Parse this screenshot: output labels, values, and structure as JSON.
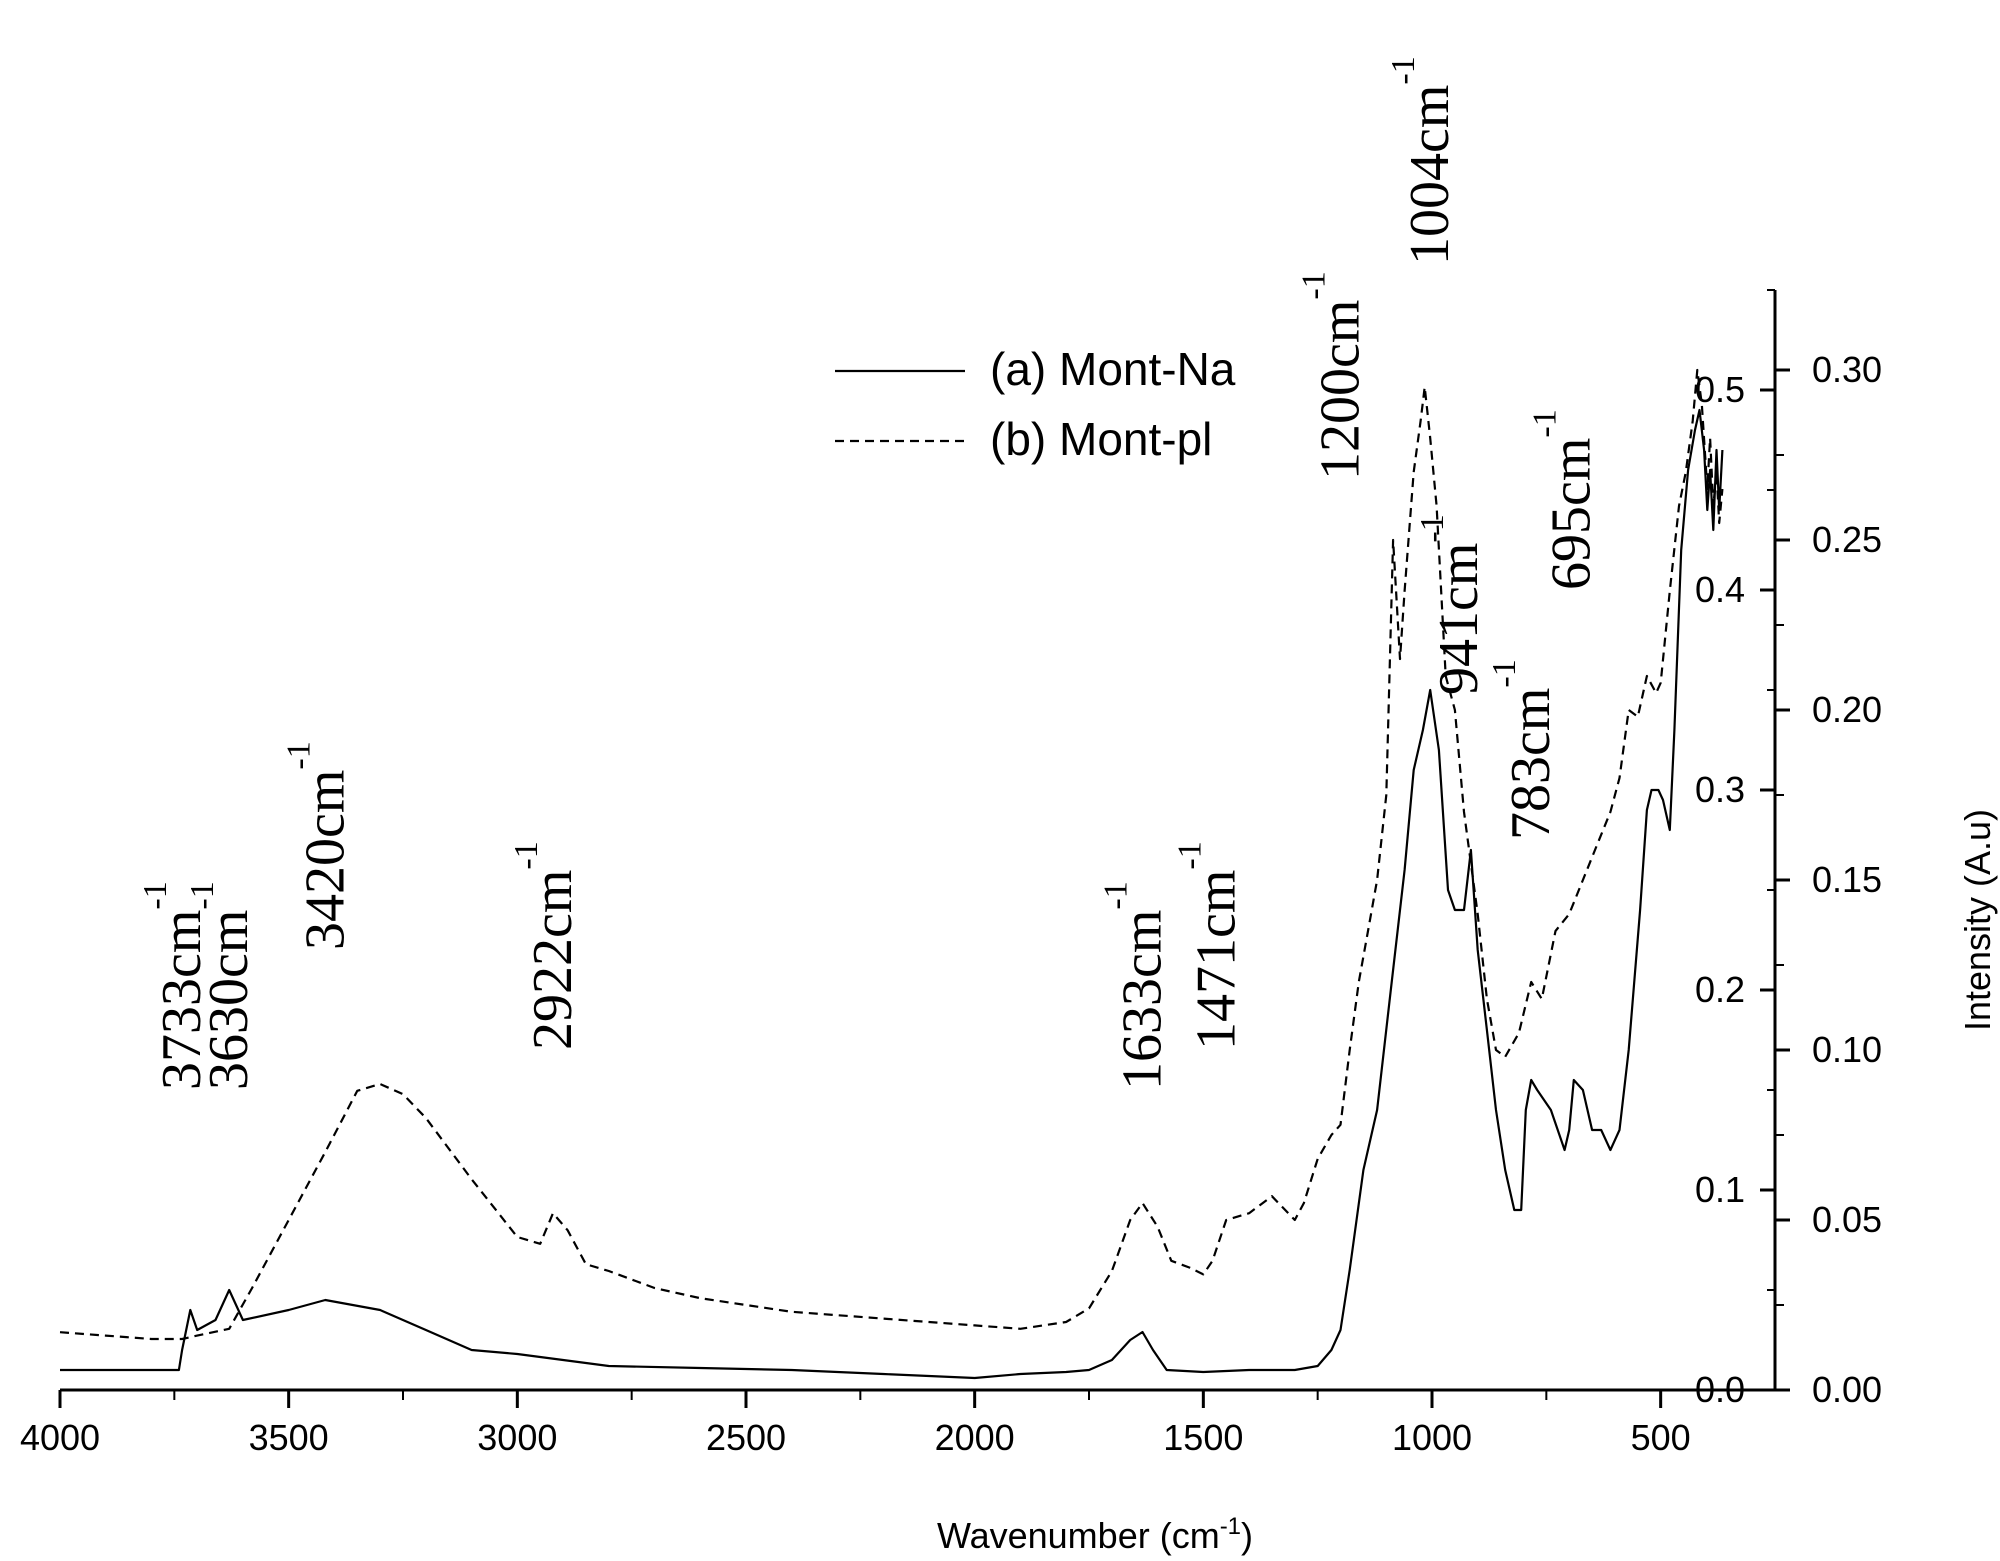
{
  "chart_data": {
    "type": "line",
    "xlabel": "Wavenumber (cm",
    "xlabel_sup": "-1",
    "xlabel_end": ")",
    "ylabel_right": "Intensity (A.u)",
    "xlim": [
      4000,
      250
    ],
    "x_reversed": true,
    "x_ticks": [
      "4000",
      "3500",
      "3000",
      "2500",
      "2000",
      "1500",
      "1000",
      "500"
    ],
    "y_left_range": [
      0,
      0.55
    ],
    "y_left_ticks": [
      "0.0",
      "0.1",
      "0.2",
      "0.3",
      "0.4",
      "0.5"
    ],
    "y_right_range": [
      0,
      0.33
    ],
    "y_right_ticks": [
      "0.00",
      "0.05",
      "0.10",
      "0.15",
      "0.20",
      "0.25",
      "0.30"
    ],
    "legend": {
      "position": "top-center",
      "entries": [
        "(a) Mont-Na",
        "(b) Mont-pl"
      ]
    },
    "series": [
      {
        "name": "(a) Mont-Na",
        "style": "solid",
        "axis": "left",
        "points": [
          [
            4000,
            0.01
          ],
          [
            3900,
            0.01
          ],
          [
            3800,
            0.01
          ],
          [
            3740,
            0.01
          ],
          [
            3733,
            0.02
          ],
          [
            3715,
            0.04
          ],
          [
            3700,
            0.03
          ],
          [
            3660,
            0.035
          ],
          [
            3630,
            0.05
          ],
          [
            3600,
            0.035
          ],
          [
            3500,
            0.04
          ],
          [
            3420,
            0.045
          ],
          [
            3300,
            0.04
          ],
          [
            3200,
            0.03
          ],
          [
            3100,
            0.02
          ],
          [
            3000,
            0.018
          ],
          [
            2900,
            0.015
          ],
          [
            2800,
            0.012
          ],
          [
            2600,
            0.011
          ],
          [
            2400,
            0.01
          ],
          [
            2200,
            0.008
          ],
          [
            2000,
            0.006
          ],
          [
            1900,
            0.008
          ],
          [
            1800,
            0.009
          ],
          [
            1750,
            0.01
          ],
          [
            1700,
            0.015
          ],
          [
            1660,
            0.025
          ],
          [
            1633,
            0.029
          ],
          [
            1610,
            0.02
          ],
          [
            1580,
            0.01
          ],
          [
            1500,
            0.009
          ],
          [
            1400,
            0.01
          ],
          [
            1300,
            0.01
          ],
          [
            1250,
            0.012
          ],
          [
            1220,
            0.02
          ],
          [
            1200,
            0.03
          ],
          [
            1180,
            0.06
          ],
          [
            1150,
            0.11
          ],
          [
            1120,
            0.14
          ],
          [
            1090,
            0.2
          ],
          [
            1060,
            0.26
          ],
          [
            1040,
            0.31
          ],
          [
            1020,
            0.33
          ],
          [
            1004,
            0.35
          ],
          [
            985,
            0.32
          ],
          [
            965,
            0.25
          ],
          [
            950,
            0.24
          ],
          [
            930,
            0.24
          ],
          [
            915,
            0.27
          ],
          [
            900,
            0.22
          ],
          [
            880,
            0.18
          ],
          [
            860,
            0.14
          ],
          [
            840,
            0.11
          ],
          [
            820,
            0.09
          ],
          [
            805,
            0.09
          ],
          [
            795,
            0.14
          ],
          [
            783,
            0.155
          ],
          [
            770,
            0.15
          ],
          [
            740,
            0.14
          ],
          [
            710,
            0.12
          ],
          [
            700,
            0.13
          ],
          [
            690,
            0.155
          ],
          [
            670,
            0.15
          ],
          [
            650,
            0.13
          ],
          [
            630,
            0.13
          ],
          [
            610,
            0.12
          ],
          [
            590,
            0.13
          ],
          [
            570,
            0.17
          ],
          [
            545,
            0.24
          ],
          [
            530,
            0.29
          ],
          [
            520,
            0.3
          ],
          [
            505,
            0.3
          ],
          [
            495,
            0.295
          ],
          [
            480,
            0.28
          ],
          [
            470,
            0.33
          ],
          [
            455,
            0.42
          ],
          [
            440,
            0.46
          ],
          [
            425,
            0.48
          ],
          [
            415,
            0.49
          ],
          [
            405,
            0.47
          ],
          [
            398,
            0.44
          ],
          [
            392,
            0.46
          ],
          [
            385,
            0.43
          ],
          [
            378,
            0.47
          ],
          [
            372,
            0.44
          ],
          [
            365,
            0.47
          ]
        ]
      },
      {
        "name": "(b) Mont-pl",
        "style": "dashed",
        "axis": "right",
        "points": [
          [
            4000,
            0.017
          ],
          [
            3900,
            0.016
          ],
          [
            3800,
            0.015
          ],
          [
            3733,
            0.015
          ],
          [
            3700,
            0.016
          ],
          [
            3630,
            0.018
          ],
          [
            3580,
            0.03
          ],
          [
            3500,
            0.05
          ],
          [
            3420,
            0.07
          ],
          [
            3350,
            0.088
          ],
          [
            3300,
            0.09
          ],
          [
            3250,
            0.087
          ],
          [
            3200,
            0.08
          ],
          [
            3100,
            0.062
          ],
          [
            3000,
            0.045
          ],
          [
            2950,
            0.043
          ],
          [
            2922,
            0.052
          ],
          [
            2890,
            0.047
          ],
          [
            2850,
            0.037
          ],
          [
            2800,
            0.035
          ],
          [
            2700,
            0.03
          ],
          [
            2600,
            0.027
          ],
          [
            2500,
            0.025
          ],
          [
            2400,
            0.023
          ],
          [
            2300,
            0.022
          ],
          [
            2200,
            0.021
          ],
          [
            2100,
            0.02
          ],
          [
            2000,
            0.019
          ],
          [
            1900,
            0.018
          ],
          [
            1800,
            0.02
          ],
          [
            1750,
            0.024
          ],
          [
            1700,
            0.035
          ],
          [
            1660,
            0.05
          ],
          [
            1633,
            0.055
          ],
          [
            1600,
            0.048
          ],
          [
            1570,
            0.038
          ],
          [
            1530,
            0.036
          ],
          [
            1500,
            0.034
          ],
          [
            1480,
            0.038
          ],
          [
            1450,
            0.05
          ],
          [
            1400,
            0.052
          ],
          [
            1350,
            0.057
          ],
          [
            1300,
            0.05
          ],
          [
            1280,
            0.055
          ],
          [
            1250,
            0.068
          ],
          [
            1220,
            0.075
          ],
          [
            1200,
            0.078
          ],
          [
            1180,
            0.1
          ],
          [
            1160,
            0.12
          ],
          [
            1140,
            0.135
          ],
          [
            1120,
            0.15
          ],
          [
            1100,
            0.175
          ],
          [
            1085,
            0.25
          ],
          [
            1070,
            0.215
          ],
          [
            1060,
            0.235
          ],
          [
            1040,
            0.27
          ],
          [
            1025,
            0.285
          ],
          [
            1016,
            0.295
          ],
          [
            1004,
            0.28
          ],
          [
            990,
            0.26
          ],
          [
            970,
            0.21
          ],
          [
            950,
            0.2
          ],
          [
            930,
            0.17
          ],
          [
            900,
            0.14
          ],
          [
            880,
            0.115
          ],
          [
            860,
            0.1
          ],
          [
            840,
            0.098
          ],
          [
            810,
            0.105
          ],
          [
            783,
            0.12
          ],
          [
            760,
            0.115
          ],
          [
            730,
            0.135
          ],
          [
            700,
            0.14
          ],
          [
            670,
            0.15
          ],
          [
            640,
            0.16
          ],
          [
            610,
            0.17
          ],
          [
            590,
            0.18
          ],
          [
            570,
            0.2
          ],
          [
            550,
            0.198
          ],
          [
            530,
            0.21
          ],
          [
            510,
            0.205
          ],
          [
            500,
            0.208
          ],
          [
            480,
            0.235
          ],
          [
            460,
            0.26
          ],
          [
            445,
            0.27
          ],
          [
            430,
            0.285
          ],
          [
            420,
            0.3
          ],
          [
            410,
            0.29
          ],
          [
            398,
            0.265
          ],
          [
            392,
            0.28
          ],
          [
            385,
            0.26
          ],
          [
            378,
            0.27
          ],
          [
            372,
            0.255
          ],
          [
            365,
            0.265
          ]
        ]
      }
    ],
    "annotations": [
      {
        "text": "3733cm",
        "sup": "-1",
        "x": 3733
      },
      {
        "text": "3630cm",
        "sup": "-1",
        "x": 3630
      },
      {
        "text": "3420cm",
        "sup": "-1",
        "x": 3420
      },
      {
        "text": "2922cm",
        "sup": "-1",
        "x": 2922
      },
      {
        "text": "1633cm",
        "sup": "-1",
        "x": 1633
      },
      {
        "text": "1471cm",
        "sup": "-1",
        "x": 1471
      },
      {
        "text": "1200cm",
        "sup": "-1",
        "x": 1200
      },
      {
        "text": "1004cm",
        "sup": "-1",
        "x": 1004
      },
      {
        "text": "941cm",
        "sup": "-1",
        "x": 941
      },
      {
        "text": "783cm",
        "sup": "-1",
        "x": 783
      },
      {
        "text": "695cm",
        "sup": "-1",
        "x": 695
      }
    ]
  }
}
